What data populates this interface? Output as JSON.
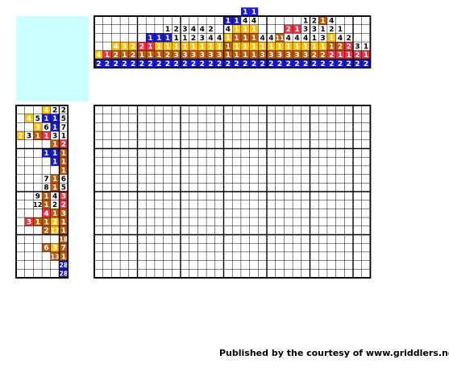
{
  "puzzle": {
    "credit": "Published by the courtesy of www.griddlers.net",
    "colors": {
      "k": "#ffffff",
      "b": "#1a1ad6",
      "o": "#bf5a00",
      "y": "#ffc000",
      "r": "#ee3344"
    },
    "column_clues": [
      [
        [
          "4",
          "y"
        ],
        [
          "2",
          "b"
        ]
      ],
      [
        [
          "1",
          "r"
        ],
        [
          "2",
          "b"
        ]
      ],
      [
        [
          "4",
          "y"
        ],
        [
          "2",
          "o"
        ],
        [
          "2",
          "b"
        ]
      ],
      [
        [
          "3",
          "y"
        ],
        [
          "1",
          "o"
        ],
        [
          "2",
          "b"
        ]
      ],
      [
        [
          "2",
          "y"
        ],
        [
          "2",
          "o"
        ],
        [
          "2",
          "b"
        ]
      ],
      [
        [
          "2",
          "r"
        ],
        [
          "1",
          "o"
        ],
        [
          "2",
          "b"
        ]
      ],
      [
        [
          "1",
          "b"
        ],
        [
          "1",
          "r"
        ],
        [
          "1",
          "o"
        ],
        [
          "2",
          "b"
        ]
      ],
      [
        [
          "1",
          "b"
        ],
        [
          "1",
          "y"
        ],
        [
          "1",
          "o"
        ],
        [
          "2",
          "b"
        ]
      ],
      [
        [
          "1",
          "k"
        ],
        [
          "1",
          "b"
        ],
        [
          "1",
          "y"
        ],
        [
          "2",
          "o"
        ],
        [
          "2",
          "b"
        ]
      ],
      [
        [
          "2",
          "k"
        ],
        [
          "1",
          "k"
        ],
        [
          "1",
          "y"
        ],
        [
          "3",
          "o"
        ],
        [
          "2",
          "b"
        ]
      ],
      [
        [
          "3",
          "k"
        ],
        [
          "1",
          "k"
        ],
        [
          "1",
          "y"
        ],
        [
          "3",
          "o"
        ],
        [
          "2",
          "b"
        ]
      ],
      [
        [
          "4",
          "k"
        ],
        [
          "2",
          "k"
        ],
        [
          "1",
          "y"
        ],
        [
          "3",
          "o"
        ],
        [
          "2",
          "b"
        ]
      ],
      [
        [
          "4",
          "k"
        ],
        [
          "3",
          "k"
        ],
        [
          "1",
          "y"
        ],
        [
          "3",
          "o"
        ],
        [
          "2",
          "b"
        ]
      ],
      [
        [
          "2",
          "k"
        ],
        [
          "4",
          "k"
        ],
        [
          "1",
          "y"
        ],
        [
          "3",
          "o"
        ],
        [
          "2",
          "b"
        ]
      ],
      [
        [
          "4",
          "k"
        ],
        [
          "1",
          "y"
        ],
        [
          "3",
          "o"
        ],
        [
          "2",
          "b"
        ]
      ],
      [
        [
          "1",
          "b"
        ],
        [
          "4",
          "k"
        ],
        [
          "1",
          "y"
        ],
        [
          "1",
          "o"
        ],
        [
          "1",
          "o"
        ],
        [
          "2",
          "b"
        ]
      ],
      [
        [
          "1",
          "b"
        ],
        [
          "1",
          "y"
        ],
        [
          "1",
          "o"
        ],
        [
          "1",
          "y"
        ],
        [
          "1",
          "o"
        ],
        [
          "2",
          "b"
        ]
      ],
      [
        [
          "1",
          "b"
        ],
        [
          "4",
          "k"
        ],
        [
          "1",
          "y"
        ],
        [
          "1",
          "o"
        ],
        [
          "1",
          "y"
        ],
        [
          "1",
          "o"
        ],
        [
          "2",
          "b"
        ]
      ],
      [
        [
          "1",
          "b"
        ],
        [
          "4",
          "k"
        ],
        [
          "1",
          "y"
        ],
        [
          "1",
          "o"
        ],
        [
          "1",
          "y"
        ],
        [
          "1",
          "o"
        ],
        [
          "2",
          "b"
        ]
      ],
      [
        [
          "4",
          "k"
        ],
        [
          "1",
          "y"
        ],
        [
          "3",
          "o"
        ],
        [
          "2",
          "b"
        ]
      ],
      [
        [
          "4",
          "k"
        ],
        [
          "1",
          "y"
        ],
        [
          "3",
          "o"
        ],
        [
          "2",
          "b"
        ]
      ],
      [
        [
          "11",
          "o"
        ],
        [
          "1",
          "y"
        ],
        [
          "3",
          "o"
        ],
        [
          "2",
          "b"
        ]
      ],
      [
        [
          "2",
          "r"
        ],
        [
          "4",
          "k"
        ],
        [
          "1",
          "y"
        ],
        [
          "3",
          "o"
        ],
        [
          "2",
          "b"
        ]
      ],
      [
        [
          "1",
          "r"
        ],
        [
          "4",
          "k"
        ],
        [
          "1",
          "y"
        ],
        [
          "3",
          "o"
        ],
        [
          "2",
          "b"
        ]
      ],
      [
        [
          "1",
          "k"
        ],
        [
          "3",
          "k"
        ],
        [
          "4",
          "k"
        ],
        [
          "1",
          "y"
        ],
        [
          "3",
          "o"
        ],
        [
          "2",
          "b"
        ]
      ],
      [
        [
          "2",
          "k"
        ],
        [
          "3",
          "k"
        ],
        [
          "1",
          "k"
        ],
        [
          "1",
          "y"
        ],
        [
          "2",
          "o"
        ],
        [
          "2",
          "b"
        ]
      ],
      [
        [
          "1",
          "o"
        ],
        [
          "1",
          "k"
        ],
        [
          "3",
          "k"
        ],
        [
          "1",
          "y"
        ],
        [
          "2",
          "o"
        ],
        [
          "2",
          "b"
        ]
      ],
      [
        [
          "4",
          "k"
        ],
        [
          "2",
          "k"
        ],
        [
          "1",
          "y"
        ],
        [
          "1",
          "o"
        ],
        [
          "2",
          "r"
        ],
        [
          "2",
          "b"
        ]
      ],
      [
        [
          "1",
          "k"
        ],
        [
          "4",
          "k"
        ],
        [
          "2",
          "o"
        ],
        [
          "1",
          "r"
        ],
        [
          "2",
          "b"
        ]
      ],
      [
        [
          "2",
          "k"
        ],
        [
          "2",
          "r"
        ],
        [
          "1",
          "r"
        ],
        [
          "2",
          "b"
        ]
      ],
      [
        [
          "3",
          "k"
        ],
        [
          "2",
          "r"
        ],
        [
          "2",
          "b"
        ]
      ],
      [
        [
          "1",
          "k"
        ],
        [
          "1",
          "r"
        ],
        [
          "2",
          "b"
        ]
      ]
    ],
    "row_clues": [
      [
        [
          "4",
          "y"
        ],
        [
          "2",
          "k"
        ],
        [
          "2",
          "k"
        ]
      ],
      [
        [
          "4",
          "y"
        ],
        [
          "5",
          "k"
        ],
        [
          "1",
          "b"
        ],
        [
          "1",
          "b"
        ],
        [
          "5",
          "k"
        ]
      ],
      [
        [
          "3",
          "y"
        ],
        [
          "6",
          "k"
        ],
        [
          "1",
          "b"
        ],
        [
          "7",
          "k"
        ]
      ],
      [
        [
          "2",
          "y"
        ],
        [
          "3",
          "k"
        ],
        [
          "1",
          "o"
        ],
        [
          "1",
          "r"
        ],
        [
          "3",
          "k"
        ],
        [
          "1",
          "k"
        ]
      ],
      [
        [
          "1",
          "o"
        ],
        [
          "2",
          "r"
        ]
      ],
      [
        [
          "1",
          "b"
        ],
        [
          "1",
          "b"
        ],
        [
          "1",
          "o"
        ]
      ],
      [
        [
          "1",
          "b"
        ],
        [
          "1",
          "o"
        ]
      ],
      [
        [
          "1",
          "o"
        ]
      ],
      [
        [
          "7",
          "k"
        ],
        [
          "1",
          "o"
        ],
        [
          "6",
          "k"
        ]
      ],
      [
        [
          "8",
          "k"
        ],
        [
          "1",
          "o"
        ],
        [
          "5",
          "k"
        ]
      ],
      [
        [
          "9",
          "k"
        ],
        [
          "1",
          "o"
        ],
        [
          "4",
          "k"
        ],
        [
          "3",
          "r"
        ]
      ],
      [
        [
          "12",
          "k"
        ],
        [
          "1",
          "o"
        ],
        [
          "2",
          "k"
        ],
        [
          "2",
          "r"
        ]
      ],
      [
        [
          "4",
          "r"
        ],
        [
          "1",
          "o"
        ],
        [
          "3",
          "o"
        ]
      ],
      [
        [
          "3",
          "r"
        ],
        [
          "1",
          "o"
        ],
        [
          "1",
          "o"
        ],
        [
          "2",
          "y"
        ],
        [
          "1",
          "o"
        ]
      ],
      [
        [
          "2",
          "o"
        ],
        [
          "17",
          "y"
        ],
        [
          "1",
          "o"
        ]
      ],
      [
        [
          "18",
          "o"
        ]
      ],
      [
        [
          "6",
          "o"
        ],
        [
          "3",
          "y"
        ],
        [
          "7",
          "o"
        ]
      ],
      [
        [
          "13",
          "o"
        ],
        [
          "1",
          "o"
        ]
      ],
      [
        [
          "28",
          "b"
        ]
      ],
      [
        [
          "28",
          "b"
        ]
      ]
    ]
  }
}
